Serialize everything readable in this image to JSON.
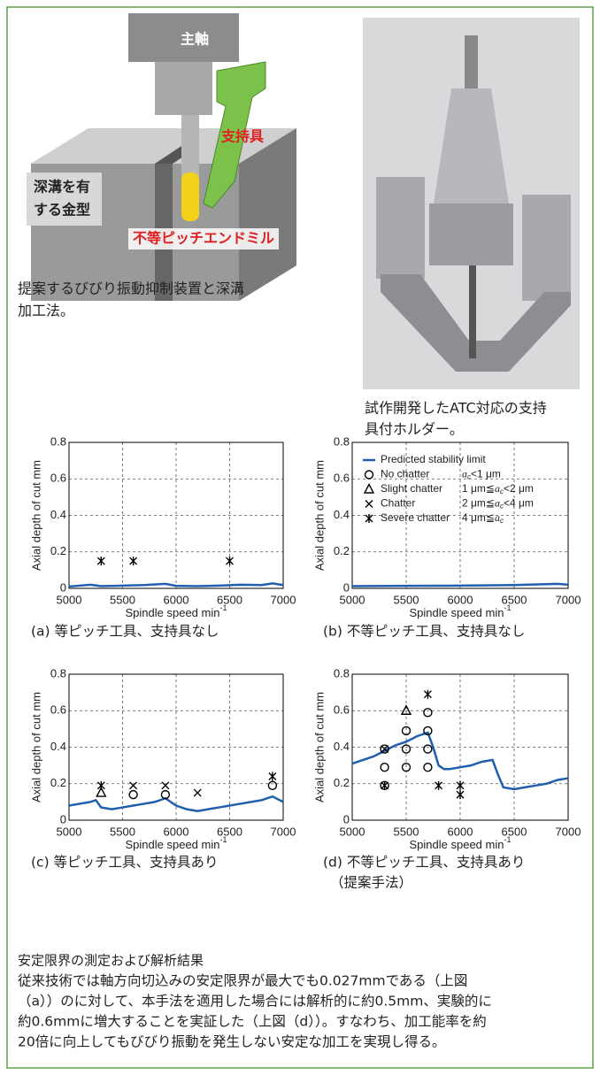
{
  "illustration": {
    "spindle": "主軸",
    "support": "支持具",
    "mold": [
      "深溝を有",
      "する金型"
    ],
    "endmill": "不等ピッチエンドミル",
    "caption": [
      "提案するびびり振動抑制装置と深溝",
      "加工法。"
    ]
  },
  "photo": {
    "caption": [
      "試作開発したATC対応の支持",
      "具付ホルダー。"
    ]
  },
  "chart_data": [
    {
      "type": "line",
      "caption": [
        "(a) 等ピッチ工具、支持具なし"
      ],
      "ylabel": "Axial depth of cut mm",
      "xlabel": {
        "text": "Spindle speed min",
        "sup": "-1"
      },
      "xlim": [
        5000,
        7000
      ],
      "ylim": [
        0,
        0.8
      ],
      "xticks": [
        5000,
        5500,
        6000,
        6500,
        7000
      ],
      "yticks": [
        0,
        0.2,
        0.4,
        0.6,
        0.8
      ],
      "grid": true,
      "series": [
        {
          "type": "line",
          "color": "#1f5fad",
          "x": [
            5000,
            5200,
            5300,
            5500,
            5700,
            5900,
            6000,
            6200,
            6400,
            6600,
            6800,
            6900,
            7000
          ],
          "values": [
            0.01,
            0.02,
            0.012,
            0.015,
            0.018,
            0.025,
            0.014,
            0.012,
            0.015,
            0.02,
            0.018,
            0.027,
            0.018
          ]
        },
        {
          "type": "scatter",
          "marker": "asterisk",
          "color": "#000000",
          "x": [
            5300,
            5600,
            6500
          ],
          "values": [
            0.15,
            0.15,
            0.15
          ]
        }
      ]
    },
    {
      "type": "line",
      "caption": [
        "(b) 不等ピッチ工具、支持具なし"
      ],
      "ylabel": "Axial depth of cut mm",
      "xlabel": {
        "text": "Spindle speed min",
        "sup": "-1"
      },
      "xlim": [
        5000,
        7000
      ],
      "ylim": [
        0,
        0.8
      ],
      "xticks": [
        5000,
        5500,
        6000,
        6500,
        7000
      ],
      "yticks": [
        0,
        0.2,
        0.4,
        0.6,
        0.8
      ],
      "grid": true,
      "series": [
        {
          "type": "line",
          "color": "#1f5fad",
          "x": [
            5000,
            5500,
            6000,
            6500,
            6900,
            7000
          ],
          "values": [
            0.012,
            0.014,
            0.015,
            0.018,
            0.025,
            0.02
          ]
        }
      ],
      "legend": {
        "position": "upper right",
        "entries": [
          {
            "name": "Predicted stability limit",
            "kind": "line"
          },
          {
            "name": "No chatter",
            "marker": "circle",
            "condition": {
              "var": "a",
              "sub": "c",
              "post": "<1 μm"
            }
          },
          {
            "name": "Slight chatter",
            "marker": "triangle",
            "condition": {
              "pre": "1 μm≦",
              "var": "a",
              "sub": "c",
              "post": "<2 μm"
            }
          },
          {
            "name": "Chatter",
            "marker": "x",
            "condition": {
              "pre": "2 μm≦",
              "var": "a",
              "sub": "c",
              "post": "<4 μm"
            }
          },
          {
            "name": "Severe chatter",
            "marker": "asterisk",
            "condition": {
              "pre": "4 μm≦",
              "var": "a",
              "sub": "c"
            }
          }
        ]
      }
    },
    {
      "type": "line",
      "caption": [
        "(c) 等ピッチ工具、支持具あり"
      ],
      "ylabel": "Axial depth of cut mm",
      "xlabel": {
        "text": "Spindle speed min",
        "sup": "-1"
      },
      "xlim": [
        5000,
        7000
      ],
      "ylim": [
        0,
        0.8
      ],
      "xticks": [
        5000,
        5500,
        6000,
        6500,
        7000
      ],
      "yticks": [
        0,
        0.2,
        0.4,
        0.6,
        0.8
      ],
      "grid": true,
      "series": [
        {
          "type": "line",
          "color": "#1f5fad",
          "x": [
            5000,
            5100,
            5200,
            5250,
            5300,
            5400,
            5500,
            5600,
            5700,
            5800,
            5900,
            6000,
            6100,
            6200,
            6300,
            6400,
            6500,
            6600,
            6700,
            6800,
            6900,
            7000
          ],
          "values": [
            0.08,
            0.09,
            0.1,
            0.11,
            0.07,
            0.06,
            0.07,
            0.08,
            0.09,
            0.1,
            0.12,
            0.08,
            0.06,
            0.05,
            0.06,
            0.07,
            0.08,
            0.09,
            0.1,
            0.11,
            0.13,
            0.1
          ]
        },
        {
          "type": "scatter",
          "marker": "triangle",
          "color": "#000000",
          "x": [
            5300
          ],
          "values": [
            0.15
          ]
        },
        {
          "type": "scatter",
          "marker": "circle",
          "color": "#000000",
          "x": [
            5600,
            5900,
            6900
          ],
          "values": [
            0.14,
            0.14,
            0.19
          ]
        },
        {
          "type": "scatter",
          "marker": "x",
          "color": "#000000",
          "x": [
            5600,
            5900,
            6200
          ],
          "values": [
            0.19,
            0.19,
            0.15
          ]
        },
        {
          "type": "scatter",
          "marker": "asterisk",
          "color": "#000000",
          "x": [
            5300,
            6900
          ],
          "values": [
            0.19,
            0.24
          ]
        }
      ]
    },
    {
      "type": "line",
      "caption": [
        "(d) 不等ピッチ工具、支持具あり",
        "（提案手法）"
      ],
      "ylabel": "Axial depth of cut mm",
      "xlabel": {
        "text": "Spindle speed min",
        "sup": "-1"
      },
      "xlim": [
        5000,
        7000
      ],
      "ylim": [
        0,
        0.8
      ],
      "xticks": [
        5000,
        5500,
        6000,
        6500,
        7000
      ],
      "yticks": [
        0,
        0.2,
        0.4,
        0.6,
        0.8
      ],
      "grid": true,
      "series": [
        {
          "type": "line",
          "color": "#1f5fad",
          "x": [
            5000,
            5100,
            5200,
            5300,
            5400,
            5500,
            5600,
            5700,
            5750,
            5800,
            5850,
            5900,
            6000,
            6100,
            6200,
            6300,
            6350,
            6400,
            6500,
            6600,
            6700,
            6800,
            6900,
            7000
          ],
          "values": [
            0.31,
            0.33,
            0.35,
            0.38,
            0.41,
            0.43,
            0.46,
            0.48,
            0.4,
            0.3,
            0.28,
            0.28,
            0.29,
            0.3,
            0.32,
            0.33,
            0.25,
            0.18,
            0.17,
            0.18,
            0.19,
            0.2,
            0.22,
            0.23
          ]
        },
        {
          "type": "scatter",
          "marker": "circle",
          "color": "#000000",
          "x": [
            5300,
            5300,
            5300,
            5500,
            5500,
            5500,
            5700,
            5700,
            5700,
            5700
          ],
          "values": [
            0.39,
            0.29,
            0.19,
            0.49,
            0.39,
            0.29,
            0.59,
            0.49,
            0.39,
            0.29
          ]
        },
        {
          "type": "scatter",
          "marker": "triangle",
          "color": "#000000",
          "x": [
            5500
          ],
          "values": [
            0.6
          ]
        },
        {
          "type": "scatter",
          "marker": "x",
          "color": "#000000",
          "x": [
            5300
          ],
          "values": [
            0.39
          ]
        },
        {
          "type": "scatter",
          "marker": "asterisk",
          "color": "#000000",
          "x": [
            5300,
            5700,
            5800,
            6000,
            6000
          ],
          "values": [
            0.19,
            0.69,
            0.19,
            0.19,
            0.14
          ]
        }
      ]
    }
  ],
  "result": {
    "title": "安定限界の測定および解析結果",
    "lines": [
      "従来技術では軸方向切込みの安定限界が最大でも0.027mmである（上図",
      "（a））のに対して、本手法を適用した場合には解析的に約0.5mm、実験的に",
      "約0.6mmに増大することを実証した（上図（d））。すなわち、加工能率を約",
      "20倍に向上してもびびり振動を発生しない安定な加工を実現し得る。"
    ]
  }
}
